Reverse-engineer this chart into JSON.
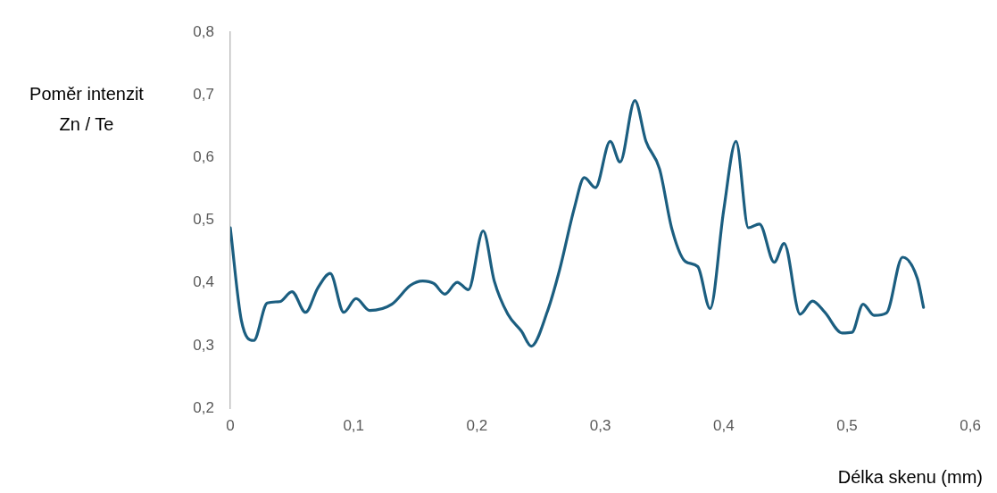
{
  "chart_data": {
    "type": "line",
    "xlabel": "Délka skenu (mm)",
    "ylabel": "Poměr intenzit Zn / Te",
    "x": [
      0,
      0.009,
      0.019,
      0.03,
      0.04,
      0.05,
      0.061,
      0.071,
      0.081,
      0.092,
      0.102,
      0.113,
      0.131,
      0.146,
      0.156,
      0.165,
      0.174,
      0.184,
      0.193,
      0.205,
      0.214,
      0.225,
      0.236,
      0.244,
      0.257,
      0.267,
      0.279,
      0.287,
      0.296,
      0.308,
      0.316,
      0.328,
      0.337,
      0.348,
      0.358,
      0.369,
      0.379,
      0.389,
      0.4,
      0.41,
      0.42,
      0.429,
      0.441,
      0.449,
      0.462,
      0.472,
      0.482,
      0.496,
      0.504,
      0.513,
      0.522,
      0.532,
      0.545,
      0.557,
      0.562
    ],
    "series": [
      {
        "color": "#1b5e80",
        "values": [
          0.488,
          0.34,
          0.308,
          0.368,
          0.37,
          0.386,
          0.353,
          0.392,
          0.415,
          0.353,
          0.375,
          0.356,
          0.366,
          0.396,
          0.403,
          0.399,
          0.382,
          0.401,
          0.389,
          0.483,
          0.403,
          0.35,
          0.323,
          0.299,
          0.354,
          0.421,
          0.52,
          0.568,
          0.552,
          0.626,
          0.593,
          0.691,
          0.626,
          0.582,
          0.486,
          0.434,
          0.426,
          0.359,
          0.516,
          0.626,
          0.488,
          0.494,
          0.433,
          0.463,
          0.35,
          0.371,
          0.353,
          0.32,
          0.321,
          0.366,
          0.348,
          0.352,
          0.441,
          0.407,
          0.361
        ]
      }
    ],
    "xlim": [
      0,
      0.6
    ],
    "xticks": [
      0,
      {
        "value": 0.1,
        "label": "0,1"
      },
      {
        "value": 0.2,
        "label": "0,2"
      },
      {
        "value": 0.3,
        "label": "0,3"
      },
      {
        "value": 0.4,
        "label": "0,4"
      },
      {
        "value": 0.5,
        "label": "0,5"
      },
      {
        "value": 0.6,
        "label": "0,6"
      }
    ],
    "ylim": [
      0.2,
      0.8
    ],
    "yticks": [
      {
        "value": 0.2,
        "label": "0,2"
      },
      {
        "value": 0.3,
        "label": "0,3"
      },
      {
        "value": 0.4,
        "label": "0,4"
      },
      {
        "value": 0.5,
        "label": "0,5"
      },
      {
        "value": 0.6,
        "label": "0,6"
      },
      {
        "value": 0.7,
        "label": "0,7"
      },
      {
        "value": 0.8,
        "label": "0,8"
      }
    ],
    "grid": false,
    "legend": false,
    "marker": "none",
    "line_style": "solid"
  }
}
